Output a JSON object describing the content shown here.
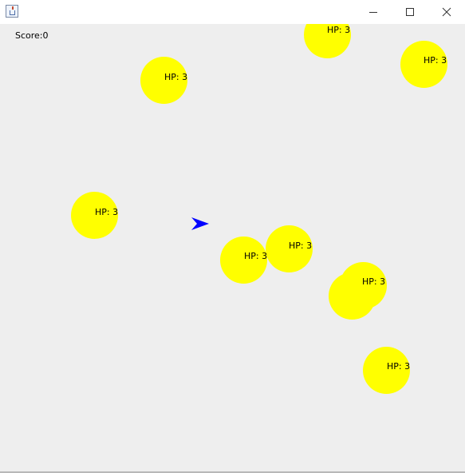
{
  "window": {
    "icon": "java-cup-icon",
    "controls": [
      "minimize-icon",
      "maximize-icon",
      "close-icon"
    ]
  },
  "hud": {
    "score_text": "Score:0"
  },
  "colors": {
    "canvas_background": "#eeeeee",
    "enemy_fill": "#ffff00",
    "ship_fill": "#0000ff",
    "text": "#000000"
  },
  "player": {
    "icon": "arrow-ship-icon",
    "heading": "right"
  },
  "enemies": [
    {
      "label": "HP: 3"
    },
    {
      "label": "HP: 3"
    },
    {
      "label": "HP: 3"
    },
    {
      "label": "HP: 3"
    },
    {
      "label": "HP: 3"
    },
    {
      "label": "HP: 3"
    },
    {
      "label": "HP: 3"
    },
    {
      "label": ""
    },
    {
      "label": "HP: 3"
    }
  ]
}
